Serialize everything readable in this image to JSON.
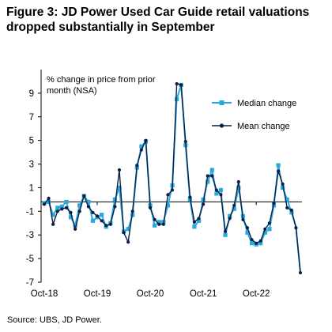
{
  "title": "Figure 3: JD Power Used Car Guide retail valuations dropped substantially in September",
  "source": "Source: UBS, JD Power.",
  "chart_data": {
    "type": "line",
    "title": "Figure 3: JD Power Used Car Guide retail valuations dropped substantially in September",
    "ylabel": "% change in price from prior month (NSA)",
    "ylabel_lines": [
      "% change in price from prior",
      "month (NSA)"
    ],
    "xlabel": "",
    "ylim": [
      -7,
      11
    ],
    "yticks": [
      9,
      7,
      5,
      3,
      1,
      -1,
      -3,
      -5,
      -7
    ],
    "x_tick_labels": [
      "Oct-18",
      "Oct-19",
      "Oct-20",
      "Oct-21",
      "Oct-22"
    ],
    "x_tick_positions": [
      0,
      12,
      24,
      36,
      48
    ],
    "x_axis_at": -0.2,
    "legend_position": "right",
    "grid": false,
    "series": [
      {
        "name": "Median change",
        "color": "#29a8e0",
        "marker": "square",
        "values": [
          -0.3,
          -0.2,
          -1.3,
          -0.7,
          -0.6,
          -0.2,
          -1.5,
          -2.2,
          -0.5,
          0.3,
          -0.2,
          -1.8,
          -1.5,
          -1.3,
          -2.3,
          -2.0,
          0.0,
          1.0,
          -2.7,
          -2.5,
          -1.3,
          2.7,
          4.5,
          4.9,
          -0.5,
          -2.2,
          -1.9,
          -1.9,
          -0.5,
          1.2,
          8.5,
          9.7,
          4.6,
          0.0,
          -2.3,
          -1.8,
          0.0,
          1.5,
          2.5,
          0.5,
          0.8,
          -3.0,
          -1.4,
          -0.8,
          1.0,
          -1.4,
          -2.8,
          -3.7,
          -3.8,
          -3.7,
          -2.8,
          -2.5,
          -0.5,
          2.9,
          1.0,
          0.0,
          -1.1,
          -2.3,
          -6.2
        ],
        "show_markers_until_index": 56
      },
      {
        "name": "Mean change",
        "color": "#0a1f44",
        "marker": "circle",
        "values": [
          -0.4,
          0.1,
          -2.1,
          -1.0,
          -0.8,
          -0.7,
          -1.1,
          -2.5,
          -1.0,
          0.3,
          -0.6,
          -1.1,
          -1.4,
          -1.8,
          -2.2,
          -2.1,
          -0.6,
          2.5,
          -2.8,
          -3.6,
          -1.0,
          2.9,
          4.2,
          5.0,
          -0.7,
          -1.7,
          -2.1,
          -2.1,
          0.4,
          0.8,
          9.8,
          9.7,
          4.9,
          0.2,
          -1.9,
          -1.6,
          -0.4,
          2.0,
          2.0,
          0.8,
          0.4,
          -2.7,
          -1.6,
          -0.5,
          1.5,
          -1.7,
          -2.4,
          -3.4,
          -3.7,
          -3.5,
          -2.5,
          -2.0,
          -0.3,
          2.4,
          1.3,
          -0.7,
          -0.9,
          -2.4,
          -6.2
        ]
      }
    ]
  }
}
